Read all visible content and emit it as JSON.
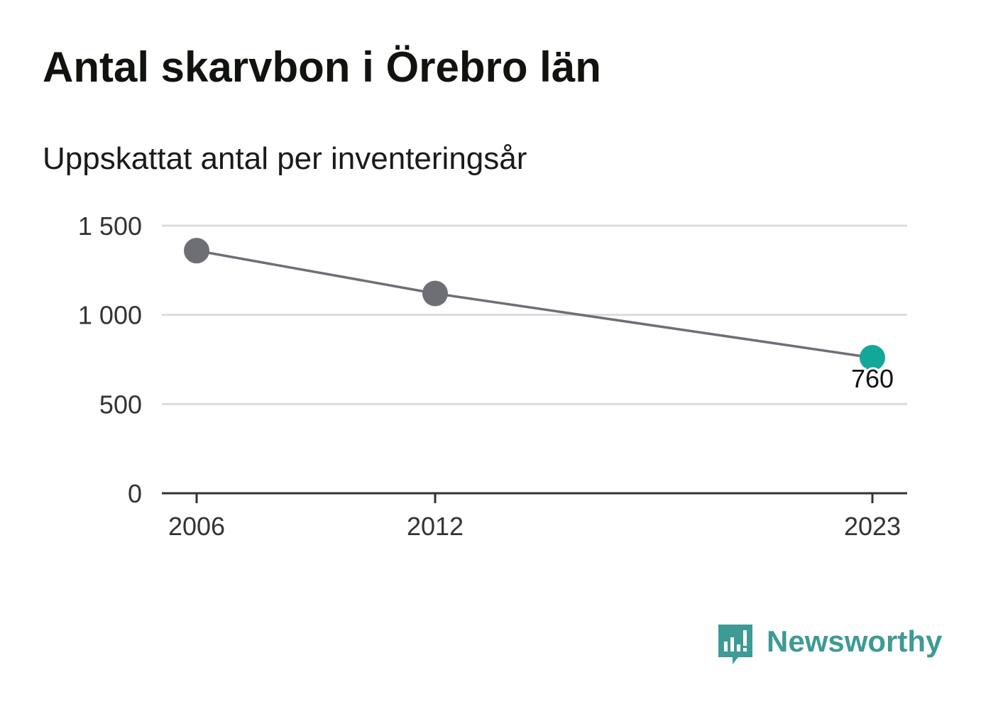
{
  "title": "Antal skarvbon i Örebro län",
  "subtitle": "Uppskattat antal per inventeringsår",
  "brand": {
    "name": "Newsworthy",
    "color": "#3e9a94",
    "icon": "newsworthy-logo-icon"
  },
  "chart_data": {
    "type": "line",
    "title": "Antal skarvbon i Örebro län",
    "subtitle": "Uppskattat antal per inventeringsår",
    "xlabel": "",
    "ylabel": "",
    "x": [
      2006,
      2012,
      2023
    ],
    "x_tick_labels": [
      "2006",
      "2012",
      "2023"
    ],
    "series": [
      {
        "values": [
          1360,
          1120,
          760
        ]
      }
    ],
    "ylim": [
      0,
      1500
    ],
    "y_ticks": [
      0,
      500,
      1000,
      1500
    ],
    "y_tick_labels": [
      "0",
      "500",
      "1 000",
      "1 500"
    ],
    "data_labels": [
      {
        "index": 2,
        "text": "760"
      }
    ],
    "grid": true,
    "legend": "none",
    "colors": {
      "line": "#6e6e76",
      "point": "#6e6e76",
      "highlight": "#13a79a",
      "grid": "#dcdcdc",
      "axis": "#333333"
    }
  }
}
